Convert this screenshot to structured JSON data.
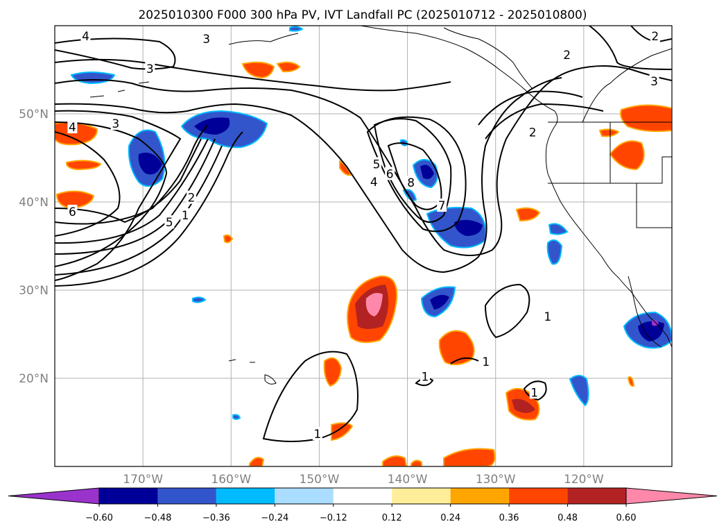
{
  "title": "2025010300 F000 300 hPa PV, IVT Landfall PC (2025010712 - 2025010800)",
  "map": {
    "lon_range": [
      -180,
      -110
    ],
    "lat_range": [
      10,
      60
    ],
    "lon_ticks": [
      {
        "lon": -170,
        "label": "170°W"
      },
      {
        "lon": -160,
        "label": "160°W"
      },
      {
        "lon": -150,
        "label": "150°W"
      },
      {
        "lon": -140,
        "label": "140°W"
      },
      {
        "lon": -130,
        "label": "130°W"
      },
      {
        "lon": -120,
        "label": "120°W"
      }
    ],
    "lat_ticks": [
      {
        "lat": 50,
        "label": "50°N"
      },
      {
        "lat": 40,
        "label": "40°N"
      },
      {
        "lat": 30,
        "label": "30°N"
      },
      {
        "lat": 20,
        "label": "20°N"
      }
    ],
    "grid": true,
    "contour_labels": [
      {
        "text": "4",
        "lon": -176.5,
        "lat": 58.8
      },
      {
        "text": "3",
        "lon": -162.8,
        "lat": 58.5
      },
      {
        "text": "3",
        "lon": -169.2,
        "lat": 55.1
      },
      {
        "text": "3",
        "lon": -173.1,
        "lat": 48.9
      },
      {
        "text": "4",
        "lon": -178.0,
        "lat": 48.5
      },
      {
        "text": "6",
        "lon": -178.0,
        "lat": 38.9
      },
      {
        "text": "5",
        "lon": -167.0,
        "lat": 37.7
      },
      {
        "text": "2",
        "lon": -164.5,
        "lat": 40.5
      },
      {
        "text": "1",
        "lon": -165.2,
        "lat": 38.5
      },
      {
        "text": "5",
        "lon": -143.5,
        "lat": 44.3
      },
      {
        "text": "4",
        "lon": -143.8,
        "lat": 42.3
      },
      {
        "text": "6",
        "lon": -142.0,
        "lat": 43.2
      },
      {
        "text": "8",
        "lon": -139.6,
        "lat": 42.2
      },
      {
        "text": "7",
        "lon": -136.1,
        "lat": 39.6
      },
      {
        "text": "2",
        "lon": -125.8,
        "lat": 47.9
      },
      {
        "text": "2",
        "lon": -121.9,
        "lat": 56.7
      },
      {
        "text": "3",
        "lon": -112.0,
        "lat": 53.7
      },
      {
        "text": "2",
        "lon": -111.9,
        "lat": 58.8
      },
      {
        "text": "1",
        "lon": -124.1,
        "lat": 27.0
      },
      {
        "text": "1",
        "lon": -131.1,
        "lat": 21.9
      },
      {
        "text": "1",
        "lon": -138.0,
        "lat": 20.2
      },
      {
        "text": "1",
        "lon": -125.6,
        "lat": 18.4
      },
      {
        "text": "1",
        "lon": -150.2,
        "lat": 13.7
      }
    ]
  },
  "colorbar": {
    "colors": [
      "#9933cc",
      "#000099",
      "#3355cc",
      "#00bbff",
      "#aaddff",
      "#ffffff",
      "#ffee99",
      "#ffa500",
      "#ff4500",
      "#b22222",
      "#ff88aa"
    ],
    "ticks": [
      "−0.60",
      "−0.48",
      "−0.36",
      "−0.24",
      "−0.12",
      "0.12",
      "0.24",
      "0.36",
      "0.48",
      "0.60"
    ]
  }
}
